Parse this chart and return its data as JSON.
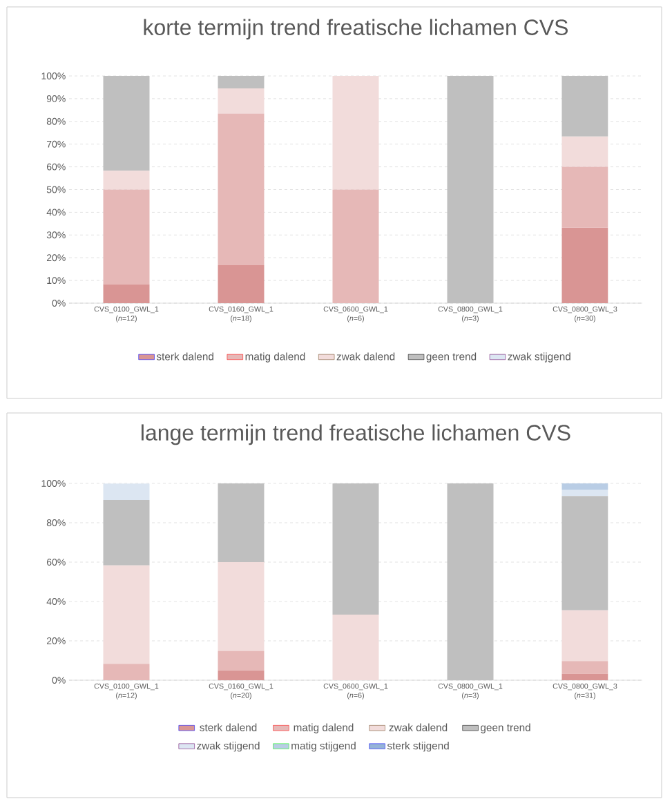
{
  "chart_data": [
    {
      "type": "bar",
      "title": "korte termijn trend freatische lichamen CVS",
      "stacked": true,
      "grid": "y",
      "legend": "bottom",
      "categories": [
        "CVS_0100_GWL_1 (*n*=12)",
        "CVS_0160_GWL_1 (*n*=18)",
        "CVS_0600_GWL_1 (*n*=6)",
        "CVS_0800_GWL_1 (*n*=3)",
        "CVS_0800_GWL_3 (*n*=30)"
      ],
      "ylim": [
        0,
        100
      ],
      "yticks": [
        {
          "value": 0,
          "label": "0%"
        },
        {
          "value": 10,
          "label": "10%"
        },
        {
          "value": 20,
          "label": "20%"
        },
        {
          "value": 30,
          "label": "30%"
        },
        {
          "value": 40,
          "label": "40%"
        },
        {
          "value": 50,
          "label": "50%"
        },
        {
          "value": 60,
          "label": "60%"
        },
        {
          "value": 70,
          "label": "70%"
        },
        {
          "value": 80,
          "label": "80%"
        },
        {
          "value": 90,
          "label": "90%"
        },
        {
          "value": 100,
          "label": "100%"
        }
      ],
      "series": [
        {
          "name": "sterk dalend",
          "color": "#d99594",
          "values": [
            8.3,
            16.7,
            0,
            0,
            33.3
          ]
        },
        {
          "name": "matig dalend",
          "color": "#e6b8b7",
          "values": [
            41.7,
            66.7,
            50,
            0,
            26.7
          ]
        },
        {
          "name": "zwak dalend",
          "color": "#f2dcdb",
          "values": [
            8.3,
            11.1,
            50,
            0,
            13.3
          ]
        },
        {
          "name": "geen trend",
          "color": "#bfbfbf",
          "values": [
            41.7,
            5.6,
            0,
            100,
            26.7
          ]
        },
        {
          "name": "zwak stijgend",
          "color": "#dce6f2",
          "values": [
            0,
            0,
            0,
            0,
            0
          ]
        }
      ]
    },
    {
      "type": "bar",
      "title": "lange termijn trend freatische lichamen CVS",
      "stacked": true,
      "grid": "y",
      "legend": "bottom",
      "categories": [
        "CVS_0100_GWL_1 (*n*=12)",
        "CVS_0160_GWL_1 (*n*=20)",
        "CVS_0600_GWL_1 (*n*=6)",
        "CVS_0800_GWL_1 (*n*=3)",
        "CVS_0800_GWL_3 (*n*=31)"
      ],
      "ylim": [
        0,
        100
      ],
      "yticks": [
        {
          "value": 0,
          "label": "0%"
        },
        {
          "value": 20,
          "label": "20%"
        },
        {
          "value": 40,
          "label": "40%"
        },
        {
          "value": 60,
          "label": "60%"
        },
        {
          "value": 80,
          "label": "80%"
        },
        {
          "value": 100,
          "label": "100%"
        }
      ],
      "series": [
        {
          "name": "sterk dalend",
          "color": "#d99594",
          "values": [
            0,
            5,
            0,
            0,
            3.2
          ]
        },
        {
          "name": "matig dalend",
          "color": "#e6b8b7",
          "values": [
            8.3,
            10,
            0,
            0,
            6.5
          ]
        },
        {
          "name": "zwak dalend",
          "color": "#f2dcdb",
          "values": [
            50,
            45,
            33.3,
            0,
            25.8
          ]
        },
        {
          "name": "geen trend",
          "color": "#bfbfbf",
          "values": [
            33.3,
            40,
            66.7,
            100,
            58.1
          ]
        },
        {
          "name": "zwak stijgend",
          "color": "#dce6f2",
          "values": [
            8.3,
            0,
            0,
            0,
            3.2
          ]
        },
        {
          "name": "matig stijgend",
          "color": "#b9cde5",
          "values": [
            0,
            0,
            0,
            0,
            3.2
          ]
        },
        {
          "name": "sterk stijgend",
          "color": "#95b3d7",
          "values": [
            0,
            0,
            0,
            0,
            0
          ]
        }
      ]
    }
  ]
}
